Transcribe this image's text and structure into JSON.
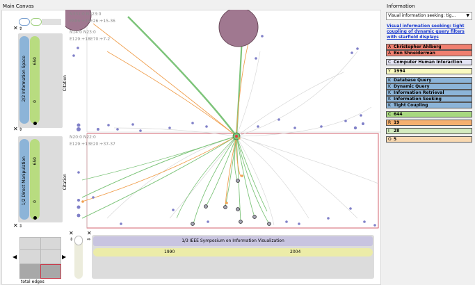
{
  "main": {
    "title": "Main Canvas"
  },
  "info": {
    "title": "Information",
    "dropdown_value": "Visual information seeking: tig...",
    "link_text": "Visual information seeking: tight coupling of dynamic query filters with starfield displays",
    "authors": [
      {
        "tag": "A",
        "name": "Christopher Ahlberg"
      },
      {
        "tag": "A",
        "name": "Ben Shneiderman"
      }
    ],
    "conference": {
      "tag": "C",
      "name": "Computer Human Interaction"
    },
    "year": {
      "tag": "Y",
      "name": "1994"
    },
    "keywords": [
      {
        "tag": "K",
        "name": "Database Query"
      },
      {
        "tag": "K",
        "name": "Dynamic Query"
      },
      {
        "tag": "K",
        "name": "Information Retrieval"
      },
      {
        "tag": "K",
        "name": "Information Seeking"
      },
      {
        "tag": "K",
        "name": "Tight Coupling"
      }
    ],
    "stats": [
      {
        "tag": "C",
        "value": "644",
        "color": "#a8d880"
      },
      {
        "tag": "R",
        "value": "19",
        "color": "#f5b070"
      },
      {
        "tag": "I",
        "value": "28",
        "color": "#d4ecc0"
      },
      {
        "tag": "O",
        "value": "5",
        "color": "#f8d8b0"
      }
    ]
  },
  "plots": [
    {
      "header_line1": "N331:0 N323:0",
      "header_line2": "E886:+15E26:+15-36",
      "header_line3": "N14:0  N23:0",
      "header_line4": "E129:+18E70:+7-2",
      "axis_label": "Citation"
    },
    {
      "header_line1": "N20:0  N22:0",
      "header_line2": "E129:+13E20:+37-37",
      "axis_label": "Citation"
    }
  ],
  "controls": {
    "space1": {
      "label": "2/2 Information Space",
      "top_value": "650",
      "bottom_value": "0"
    },
    "space2": {
      "label": "1/2 Direct Manipulation",
      "top_value": "650",
      "bottom_value": "0"
    }
  },
  "timeline": {
    "title": "1/3 IEEE Symposium on Information Visualization",
    "start": "1990",
    "end": "2004"
  },
  "footer": {
    "total_edges": "total edges"
  },
  "colors": {
    "accent_green": "#7dc47a",
    "accent_orange": "#f0a050",
    "node_blue": "#8080c8",
    "red_border": "#c83c4c",
    "author_red": "#f08070",
    "keyword_blue": "#8cb4d8"
  }
}
